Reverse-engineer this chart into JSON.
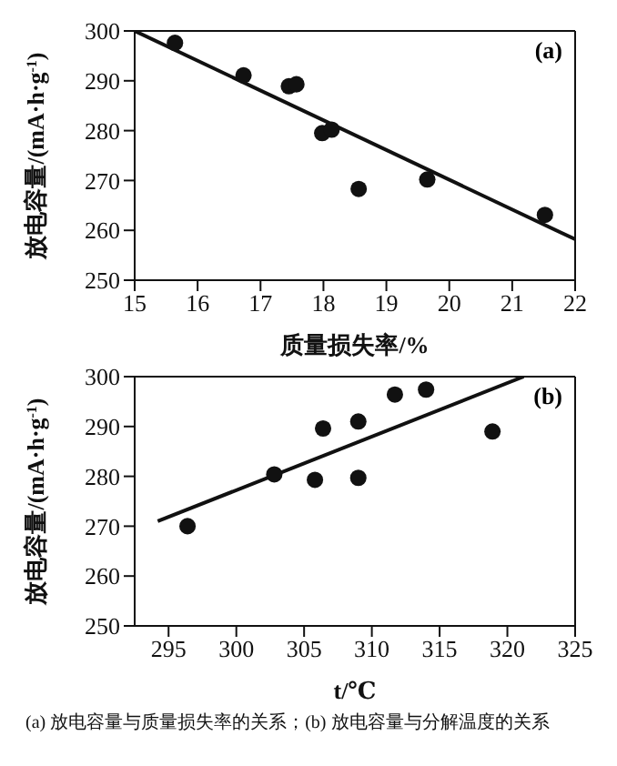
{
  "chart_data": [
    {
      "type": "scatter",
      "xlabel": "质量损失率/%",
      "ylabel": "放电容量/(mA·h·g$^{-1}$)",
      "xlim": [
        15,
        22
      ],
      "xticks": [
        15,
        16,
        17,
        18,
        19,
        20,
        21,
        22
      ],
      "ylim": [
        250,
        300
      ],
      "yticks": [
        250,
        260,
        270,
        280,
        290,
        300
      ],
      "marker": "circle",
      "annotations": [
        "(a)"
      ],
      "x": [
        15.64,
        16.73,
        17.45,
        17.57,
        17.98,
        18.13,
        18.56,
        19.65,
        21.52
      ],
      "series": [
        {
          "color": "#111111",
          "values": [
            297.6,
            291.1,
            288.9,
            289.3,
            279.5,
            280.2,
            268.3,
            270.2,
            263.1
          ]
        },
        {
          "type": "line",
          "color": "#111111",
          "marker": "none",
          "x": [
            15,
            22
          ],
          "values": [
            300,
            258.2
          ]
        }
      ]
    },
    {
      "type": "scatter",
      "xlabel": "t/℃",
      "ylabel": "放电容量/(mA·h·g$^{-1}$)",
      "xlim": [
        292.5,
        325
      ],
      "xticks": [
        295,
        300,
        305,
        310,
        315,
        320,
        325
      ],
      "ylim": [
        250,
        300
      ],
      "yticks": [
        250,
        260,
        270,
        280,
        290,
        300
      ],
      "marker": "circle",
      "annotations": [
        "(b)",
        "(a) 放电容量与质量损失率的关系；(b) 放电容量与分解温度的关系"
      ],
      "x": [
        296.4,
        302.8,
        305.8,
        306.4,
        309.0,
        309.0,
        311.7,
        314.0,
        318.9
      ],
      "series": [
        {
          "color": "#111111",
          "values": [
            270.0,
            280.4,
            279.3,
            289.6,
            291.0,
            279.7,
            296.4,
            297.4,
            289.0
          ]
        },
        {
          "type": "line",
          "color": "#111111",
          "marker": "none",
          "x": [
            294.2,
            321.2
          ],
          "values": [
            271.0,
            300
          ]
        }
      ]
    }
  ]
}
